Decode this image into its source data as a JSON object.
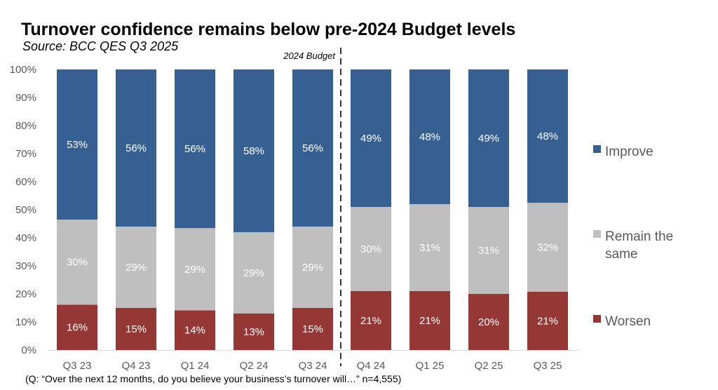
{
  "chart_data": {
    "type": "bar",
    "stacked": true,
    "title": "Turnover confidence remains below pre-2024 Budget levels",
    "subtitle": "Source: BCC QES Q3 2025",
    "footnote": "(Q: “Over the next 12 months, do you believe your business’s turnover will…” n=4,555)",
    "annotation": "2024 Budget",
    "categories": [
      "Q3 23",
      "Q4 23",
      "Q1 24",
      "Q2 24",
      "Q3 24",
      "Q4 24",
      "Q1 25",
      "Q2 25",
      "Q3 25"
    ],
    "series": [
      {
        "name": "Worsen",
        "color": "#953735",
        "values": [
          16,
          15,
          14,
          13,
          15,
          21,
          21,
          20,
          21
        ]
      },
      {
        "name": "Remain the same",
        "color": "#bfbfbf",
        "values": [
          30,
          29,
          29,
          29,
          29,
          30,
          31,
          31,
          32
        ]
      },
      {
        "name": "Improve",
        "color": "#376092",
        "values": [
          53,
          56,
          56,
          58,
          56,
          49,
          48,
          49,
          48
        ]
      }
    ],
    "yticks": [
      "0%",
      "10%",
      "20%",
      "30%",
      "40%",
      "50%",
      "60%",
      "70%",
      "80%",
      "90%",
      "100%"
    ],
    "ylim": [
      0,
      100
    ],
    "legend": "right",
    "grid": false
  }
}
